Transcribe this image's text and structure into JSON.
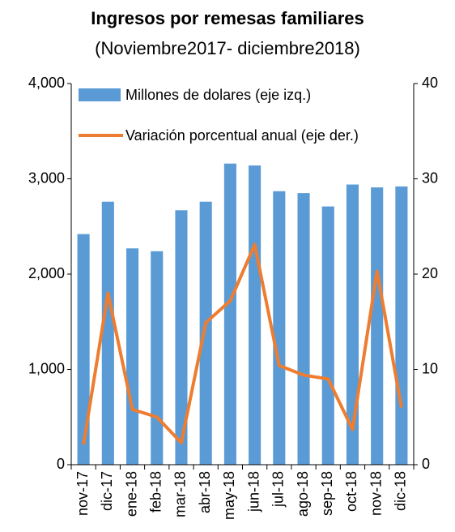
{
  "chart_data": {
    "type": "bar_line",
    "title": "Ingresos por remesas familiares",
    "subtitle": "(Noviembre2017- diciembre2018)",
    "categories": [
      "nov-17",
      "dic-17",
      "ene-18",
      "feb-18",
      "mar-18",
      "abr-18",
      "may-18",
      "jun-18",
      "jul-18",
      "ago-18",
      "sep-18",
      "oct-18",
      "nov-18",
      "dic-18"
    ],
    "series": [
      {
        "name": "Millones de dolares (eje izq.)",
        "type": "bar",
        "color": "#5b9bd5",
        "values": [
          2420,
          2760,
          2270,
          2240,
          2670,
          2760,
          3160,
          3140,
          2870,
          2850,
          2710,
          2940,
          2910,
          2920
        ]
      },
      {
        "name": "Variación porcentual anual (eje der.)",
        "type": "line",
        "color": "#ed7d31",
        "axis": "y2",
        "values": [
          2.1,
          18.0,
          5.8,
          5.0,
          2.3,
          14.9,
          17.2,
          23.1,
          10.4,
          9.4,
          9.0,
          3.7,
          20.3,
          6.0
        ]
      }
    ],
    "ylim": [
      0,
      4000
    ],
    "yticks": [
      0,
      {
        "value": 1000,
        "label": "1,000"
      },
      {
        "value": 2000,
        "label": "2,000"
      },
      {
        "value": 3000,
        "label": "3,000"
      },
      {
        "value": 4000,
        "label": "4,000"
      }
    ],
    "y2lim": [
      0,
      40
    ],
    "y2ticks": [
      0,
      10,
      20,
      30,
      40
    ],
    "legend": "upper left"
  }
}
